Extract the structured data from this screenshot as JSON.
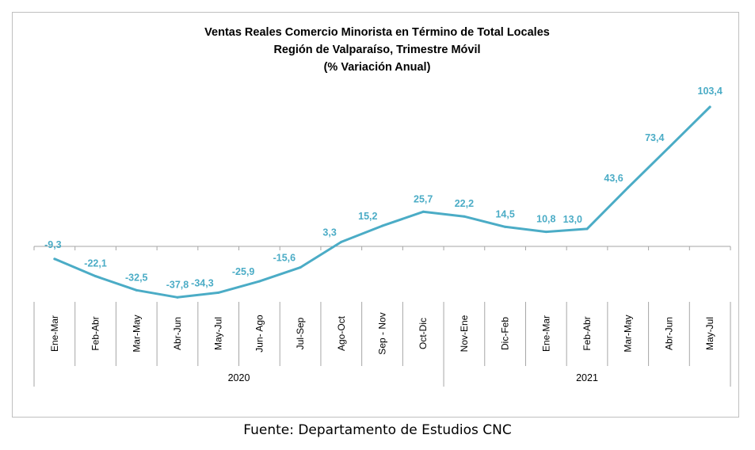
{
  "chart_data": {
    "type": "line",
    "title_lines": [
      "Ventas Reales Comercio Minorista  en Término de Total Locales",
      "Región de Valparaíso, Trimestre Móvil",
      "(% Variación Anual)"
    ],
    "categories": [
      "Ene-Mar",
      "Feb-Abr",
      "Mar-May",
      "Abr-Jun",
      "May-Jul",
      "Jun- Ago",
      "Jul-Sep",
      "Ago-Oct",
      "Sep - Nov",
      "Oct-Dic",
      "Nov-Ene",
      "Dic-Feb",
      "Ene-Mar",
      "Feb-Abr",
      "Mar-May",
      "Abr-Jun",
      "May-Jul"
    ],
    "groups": [
      {
        "label": "2020",
        "count": 10
      },
      {
        "label": "2021",
        "count": 7
      }
    ],
    "series": [
      {
        "values": [
          -9.3,
          -22.1,
          -32.5,
          -37.8,
          -34.3,
          -25.9,
          -15.6,
          3.3,
          15.2,
          25.7,
          22.2,
          14.5,
          10.8,
          13.0,
          43.6,
          73.4,
          103.4
        ],
        "value_labels": [
          "-9,3",
          "-22,1",
          "-32,5",
          "-37,8",
          "-34,3",
          "-25,9",
          "-15,6",
          "3,3",
          "15,2",
          "25,7",
          "22,2",
          "14,5",
          "10,8",
          "13,0",
          "43,6",
          "73,4",
          "103,4"
        ],
        "color": "#4bacc6"
      }
    ],
    "data_labels": true,
    "grid": false,
    "legend": "none"
  },
  "source_text": "Fuente: Departamento de Estudios CNC"
}
